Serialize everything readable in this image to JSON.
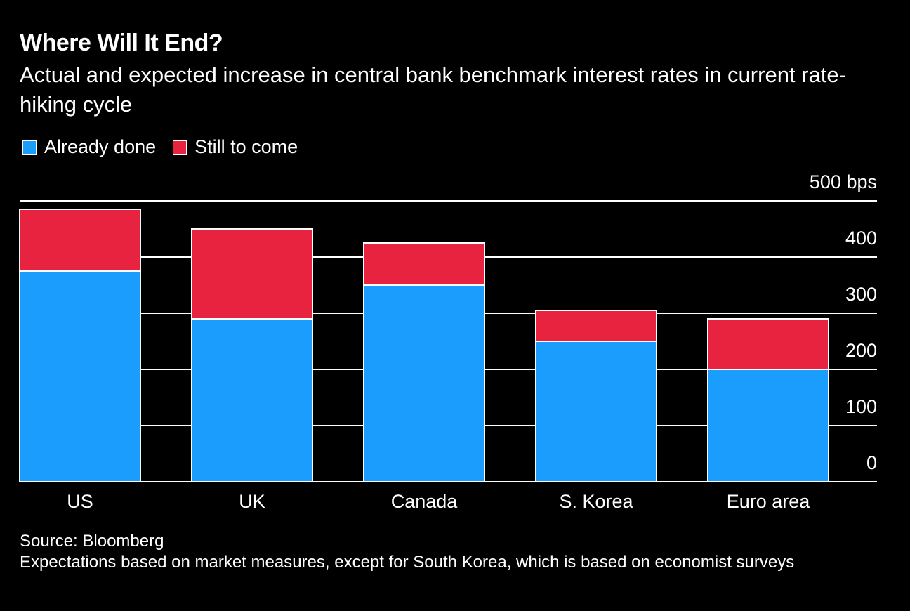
{
  "title": "Where Will It End?",
  "subtitle": "Actual and expected increase in central bank benchmark interest rates in current rate-hiking cycle",
  "legend": {
    "done": "Already done",
    "tocome": "Still to come"
  },
  "colors": {
    "done": "#1a9dfd",
    "tocome": "#e8233f",
    "background": "#000000",
    "text": "#ffffff",
    "grid": "#ffffff"
  },
  "source": "Source: Bloomberg",
  "note": "Expectations based on market measures, except for South Korea, which is based on economist surveys",
  "chart_data": {
    "type": "bar",
    "stacked": true,
    "title": "Where Will It End?",
    "ylabel": "bps",
    "ylim": [
      0,
      500
    ],
    "y_ticks": [
      0,
      100,
      200,
      300,
      400,
      500
    ],
    "y_tick_labels": [
      "0",
      "100",
      "200",
      "300",
      "400",
      "500 bps"
    ],
    "categories": [
      "US",
      "UK",
      "Canada",
      "S. Korea",
      "Euro area"
    ],
    "series": [
      {
        "name": "Already done",
        "values": [
          375,
          290,
          350,
          250,
          200
        ]
      },
      {
        "name": "Still to come",
        "values": [
          110,
          160,
          75,
          55,
          90
        ]
      }
    ],
    "grid": true,
    "legend_position": "top-left"
  }
}
